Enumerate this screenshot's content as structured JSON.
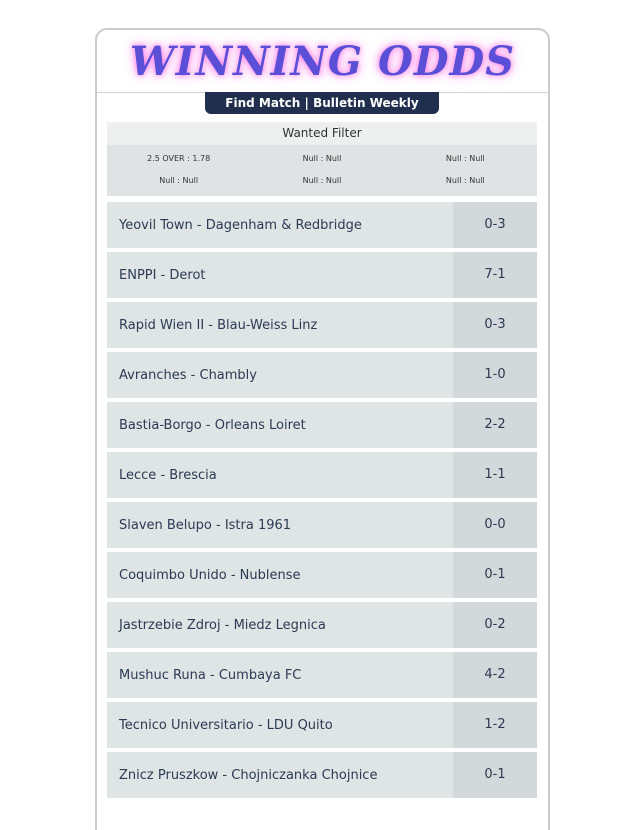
{
  "header": {
    "title": "WINNING ODDS",
    "tab": "Find Match | Bulletin Weekly"
  },
  "filter": {
    "title": "Wanted Filter",
    "items": [
      "2.5 OVER : 1.78",
      "Null : Null",
      "Null : Null",
      "Null : Null",
      "Null : Null",
      "Null : Null"
    ]
  },
  "matches": [
    {
      "teams": "Yeovil Town - Dagenham & Redbridge",
      "score": "0-3"
    },
    {
      "teams": "ENPPI - Derot",
      "score": "7-1"
    },
    {
      "teams": "Rapid Wien II - Blau-Weiss Linz",
      "score": "0-3"
    },
    {
      "teams": "Avranches - Chambly",
      "score": "1-0"
    },
    {
      "teams": "Bastia-Borgo - Orleans Loiret",
      "score": "2-2"
    },
    {
      "teams": "Lecce - Brescia",
      "score": "1-1"
    },
    {
      "teams": "Slaven Belupo - Istra 1961",
      "score": "0-0"
    },
    {
      "teams": "Coquimbo Unido - Nublense",
      "score": "0-1"
    },
    {
      "teams": "Jastrzebie Zdroj - Miedz Legnica",
      "score": "0-2"
    },
    {
      "teams": "Mushuc Runa - Cumbaya FC",
      "score": "4-2"
    },
    {
      "teams": "Tecnico Universitario - LDU Quito",
      "score": "1-2"
    },
    {
      "teams": "Znicz Pruszkow - Chojniczanka Chojnice",
      "score": "0-1"
    }
  ]
}
